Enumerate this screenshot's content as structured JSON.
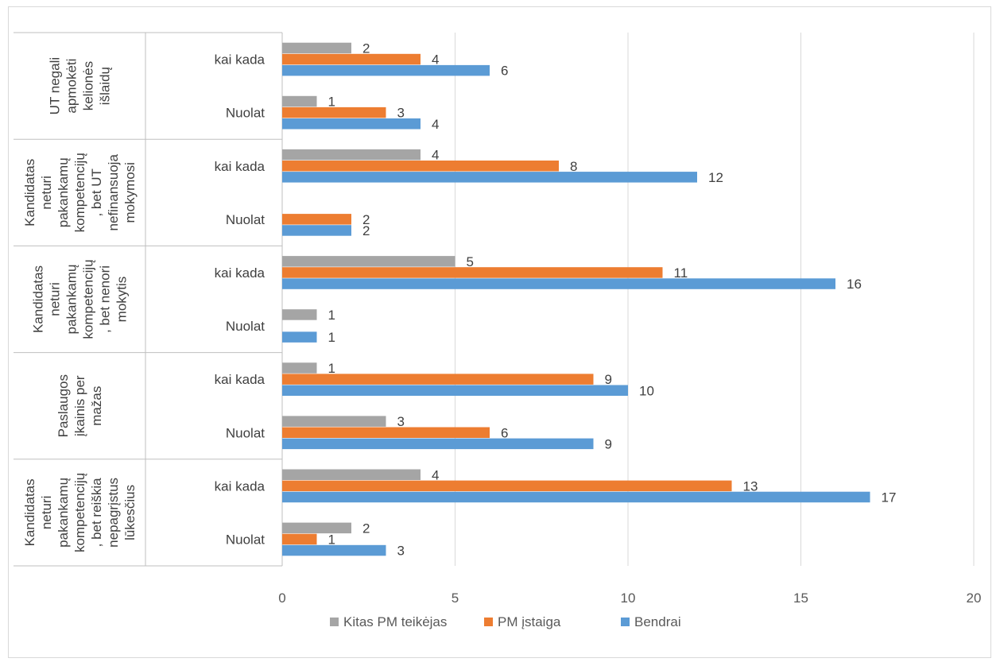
{
  "chart_data": {
    "type": "bar",
    "orientation": "horizontal",
    "title": "",
    "xlim": [
      0,
      20
    ],
    "x_ticks": [
      "0",
      "5",
      "10",
      "15",
      "20"
    ],
    "grid": "vertical",
    "legend_position": "bottom",
    "groups": [
      {
        "label": "UT negali apmokėti kelionės išlaidų",
        "lines": [
          "UT negali",
          "apmokėti",
          "kelionės",
          "išlaidų"
        ],
        "rows": [
          {
            "label": "kai kada",
            "values": {
              "kitas": 2,
              "istaiga": 4,
              "bendrai": 6
            }
          },
          {
            "label": "Nuolat",
            "values": {
              "kitas": 1,
              "istaiga": 3,
              "bendrai": 4
            }
          }
        ]
      },
      {
        "label": "Kandidatas neturi pakankamų kompetencijų, bet UT nefinansuoja mokymosi",
        "lines": [
          "Kandidatas",
          "neturi",
          "pakankamų",
          "kompetencijų",
          ", bet UT",
          "nefinansuoja",
          "mokymosi"
        ],
        "rows": [
          {
            "label": "kai kada",
            "values": {
              "kitas": 4,
              "istaiga": 8,
              "bendrai": 12
            }
          },
          {
            "label": "Nuolat",
            "values": {
              "kitas": null,
              "istaiga": 2,
              "bendrai": 2
            }
          }
        ]
      },
      {
        "label": "Kandidatas neturi pakankamų kompetencijų, bet nenori mokytis",
        "lines": [
          "Kandidatas",
          "neturi",
          "pakankamų",
          "kompetencijų",
          ", bet nenori",
          "mokytis"
        ],
        "rows": [
          {
            "label": "kai kada",
            "values": {
              "kitas": 5,
              "istaiga": 11,
              "bendrai": 16
            }
          },
          {
            "label": "Nuolat",
            "values": {
              "kitas": 1,
              "istaiga": null,
              "bendrai": 1
            }
          }
        ]
      },
      {
        "label": "Paslaugos įkainis per mažas",
        "lines": [
          "Paslaugos",
          "įkainis per",
          "mažas"
        ],
        "rows": [
          {
            "label": "kai kada",
            "values": {
              "kitas": 1,
              "istaiga": 9,
              "bendrai": 10
            }
          },
          {
            "label": "Nuolat",
            "values": {
              "kitas": 3,
              "istaiga": 6,
              "bendrai": 9
            }
          }
        ]
      },
      {
        "label": "Kandidatas neturi pakankamų kompetencijų, bet reiškia nepagrįstus lūkesčius",
        "lines": [
          "Kandidatas",
          "neturi",
          "pakankamų",
          "kompetencijų",
          ", bet reiškia",
          "nepagrįstus",
          "lūkesčius"
        ],
        "rows": [
          {
            "label": "kai kada",
            "values": {
              "kitas": 4,
              "istaiga": 13,
              "bendrai": 17
            }
          },
          {
            "label": "Nuolat",
            "values": {
              "kitas": 2,
              "istaiga": 1,
              "bendrai": 3
            }
          }
        ]
      }
    ],
    "series": [
      {
        "key": "kitas",
        "name": "Kitas PM teikėjas",
        "color": "#a5a5a5"
      },
      {
        "key": "istaiga",
        "name": "PM įstaiga",
        "color": "#ed7d31"
      },
      {
        "key": "bendrai",
        "name": "Bendrai",
        "color": "#5b9bd5"
      }
    ]
  }
}
